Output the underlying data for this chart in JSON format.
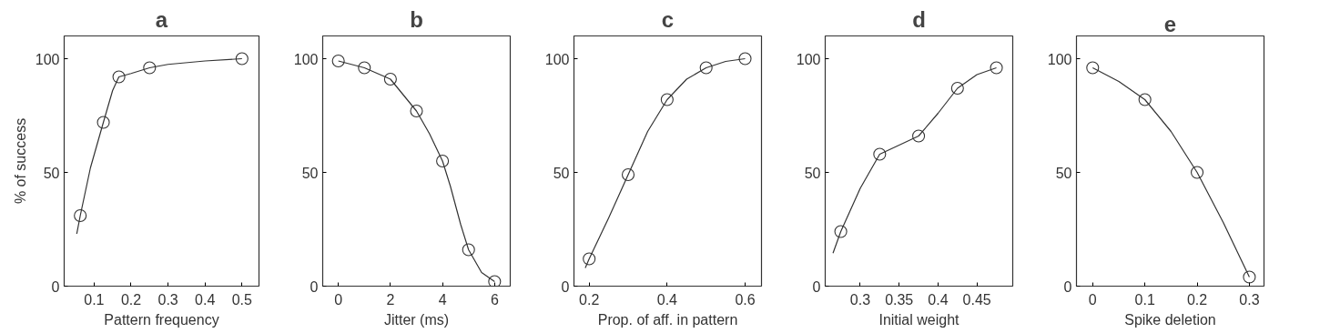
{
  "chart_data": [
    {
      "type": "line",
      "title": "a",
      "xlabel": "Pattern frequency",
      "ylabel": "% of success",
      "xlim": [
        0.019,
        0.546
      ],
      "ylim": [
        0,
        110
      ],
      "xticks": [
        0.1,
        0.2,
        0.3,
        0.4,
        0.5
      ],
      "yticks": [
        0,
        50,
        100
      ],
      "grid": false,
      "series": [
        {
          "type": "scatter",
          "marker": "circle",
          "color": "#333333",
          "x": [
            0.0625,
            0.125,
            0.167,
            0.25,
            0.5
          ],
          "values": [
            31,
            72,
            92,
            96,
            100
          ]
        },
        {
          "marker": "none",
          "line_style": "solid",
          "color": "#333333",
          "x": [
            0.053,
            0.0625,
            0.09,
            0.125,
            0.15,
            0.167,
            0.2,
            0.25,
            0.3,
            0.4,
            0.5
          ],
          "values": [
            23,
            31,
            52,
            72,
            86,
            92,
            93.5,
            96,
            97.5,
            99,
            100
          ]
        }
      ]
    },
    {
      "type": "line",
      "title": "b",
      "xlabel": "Jitter (ms)",
      "xlim": [
        -0.6,
        6.6
      ],
      "ylim": [
        0,
        110
      ],
      "xticks": [
        0,
        2,
        4,
        6
      ],
      "yticks": [
        0,
        50,
        100
      ],
      "grid": false,
      "series": [
        {
          "type": "scatter",
          "marker": "circle",
          "color": "#333333",
          "x": [
            0,
            1,
            2,
            3,
            4,
            5,
            6
          ],
          "values": [
            99,
            96,
            91,
            77,
            55,
            16,
            2
          ]
        },
        {
          "marker": "none",
          "line_style": "solid",
          "color": "#333333",
          "x": [
            0,
            1,
            2,
            3,
            3.5,
            4,
            4.3,
            4.7,
            5,
            5.5,
            6
          ],
          "values": [
            99,
            96,
            91,
            77,
            67,
            55,
            44,
            27,
            16,
            6,
            2
          ]
        }
      ]
    },
    {
      "type": "line",
      "title": "c",
      "xlabel": "Prop. of aff. in pattern",
      "xlim": [
        0.161,
        0.642
      ],
      "ylim": [
        0,
        110
      ],
      "xticks": [
        0.2,
        0.4,
        0.6
      ],
      "yticks": [
        0,
        50,
        100
      ],
      "grid": false,
      "series": [
        {
          "type": "scatter",
          "marker": "circle",
          "color": "#333333",
          "x": [
            0.2,
            0.3,
            0.4,
            0.5,
            0.6
          ],
          "values": [
            12,
            49,
            82,
            96,
            100
          ]
        },
        {
          "marker": "none",
          "line_style": "solid",
          "color": "#333333",
          "x": [
            0.19,
            0.2,
            0.25,
            0.3,
            0.35,
            0.4,
            0.45,
            0.5,
            0.55,
            0.6
          ],
          "values": [
            8,
            12,
            30,
            49,
            68,
            82,
            91,
            96,
            98.8,
            100
          ]
        }
      ]
    },
    {
      "type": "line",
      "title": "d",
      "xlabel": "Initial weight",
      "xlim": [
        0.255,
        0.496
      ],
      "ylim": [
        0,
        110
      ],
      "xticks": [
        0.3,
        0.35,
        0.4,
        0.45
      ],
      "yticks": [
        0,
        50,
        100
      ],
      "grid": false,
      "series": [
        {
          "type": "scatter",
          "marker": "circle",
          "color": "#333333",
          "x": [
            0.275,
            0.325,
            0.375,
            0.425,
            0.475
          ],
          "values": [
            24,
            58,
            66,
            87,
            96
          ]
        },
        {
          "marker": "none",
          "line_style": "solid",
          "color": "#333333",
          "x": [
            0.265,
            0.275,
            0.3,
            0.325,
            0.35,
            0.375,
            0.4,
            0.425,
            0.45,
            0.475
          ],
          "values": [
            14.5,
            24,
            43,
            58,
            62,
            66,
            76,
            87,
            93,
            96
          ]
        }
      ]
    },
    {
      "type": "line",
      "title": "e",
      "xlabel": "Spike deletion",
      "xlim": [
        -0.031,
        0.328
      ],
      "ylim": [
        0,
        110
      ],
      "xticks": [
        0,
        0.1,
        0.2,
        0.3
      ],
      "yticks": [
        0,
        50,
        100
      ],
      "grid": false,
      "series": [
        {
          "type": "scatter",
          "marker": "circle",
          "color": "#333333",
          "x": [
            0,
            0.1,
            0.2,
            0.3
          ],
          "values": [
            96,
            82,
            50,
            4
          ]
        },
        {
          "marker": "none",
          "line_style": "solid",
          "color": "#333333",
          "x": [
            0,
            0.05,
            0.1,
            0.15,
            0.2,
            0.25,
            0.3
          ],
          "values": [
            96,
            90,
            82,
            68,
            50,
            28,
            4
          ]
        }
      ]
    }
  ]
}
